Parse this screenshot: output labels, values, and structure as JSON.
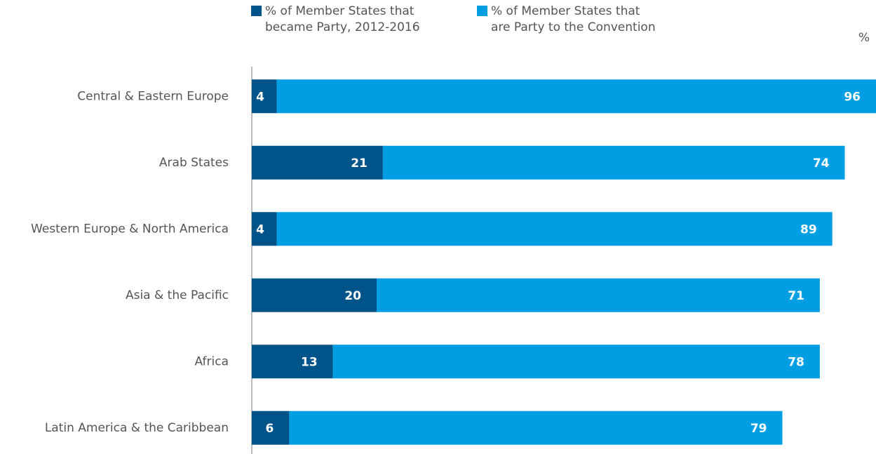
{
  "chart_data": {
    "type": "stacked-bar-horizontal",
    "x_label": "%",
    "categories": [
      "Central & Eastern Europe",
      "Arab States",
      "Western Europe & North America",
      "Asia & the Pacific",
      "Africa",
      "Latin America & the Caribbean"
    ],
    "series": [
      {
        "name": "% of Member States that became Party, 2012-2016",
        "color": "#00548a",
        "values": [
          4,
          21,
          4,
          20,
          13,
          6
        ]
      },
      {
        "name": "% of Member States that are Party to the Convention",
        "color": "#009fe3",
        "values": [
          96,
          74,
          89,
          71,
          78,
          79
        ]
      }
    ],
    "xlim": [
      0,
      100
    ],
    "legend": "top"
  }
}
